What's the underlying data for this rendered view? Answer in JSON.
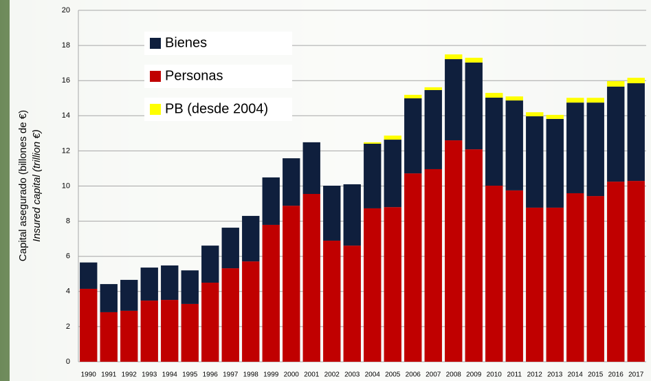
{
  "chart_data": {
    "type": "stacked-bar",
    "ylabel": "Capital asegurado (billones de €)",
    "ylabel2": "Insured capital (trillion €)",
    "categories": [
      "1990",
      "1991",
      "1992",
      "1993",
      "1994",
      "1995",
      "1996",
      "1997",
      "1998",
      "1999",
      "2000",
      "2001",
      "2002",
      "2003",
      "2004",
      "2005",
      "2006",
      "2007",
      "2008",
      "2009",
      "2010",
      "2011",
      "2012",
      "2013",
      "2014",
      "2015",
      "2016",
      "2017"
    ],
    "series": [
      {
        "name": "Personas",
        "color": "#c00000",
        "values": [
          4.15,
          2.82,
          2.9,
          3.48,
          3.52,
          3.29,
          4.5,
          5.32,
          5.71,
          7.79,
          8.88,
          9.55,
          6.89,
          6.61,
          8.73,
          8.8,
          10.72,
          10.96,
          12.6,
          12.09,
          10.02,
          9.75,
          8.77,
          8.77,
          9.59,
          9.43,
          10.25,
          10.29
        ]
      },
      {
        "name": "Bienes",
        "color": "#0f1f3d",
        "values": [
          1.5,
          1.6,
          1.76,
          1.88,
          1.96,
          1.91,
          2.11,
          2.31,
          2.59,
          2.7,
          2.7,
          2.94,
          3.13,
          3.49,
          3.68,
          3.84,
          4.27,
          4.5,
          4.62,
          4.94,
          5.01,
          5.12,
          5.2,
          5.05,
          5.16,
          5.32,
          5.41,
          5.56
        ]
      },
      {
        "name": "PB (desde 2004)",
        "color": "#ffff00",
        "values": [
          null,
          null,
          null,
          null,
          null,
          null,
          null,
          null,
          null,
          null,
          null,
          null,
          null,
          null,
          0.08,
          0.23,
          0.2,
          0.16,
          0.27,
          0.27,
          0.27,
          0.23,
          0.23,
          0.23,
          0.27,
          0.27,
          0.31,
          0.31
        ]
      }
    ],
    "ylim": [
      0,
      20
    ],
    "yticks": [
      0,
      2,
      4,
      6,
      8,
      10,
      12,
      14,
      16,
      18,
      20
    ],
    "grid": true
  }
}
